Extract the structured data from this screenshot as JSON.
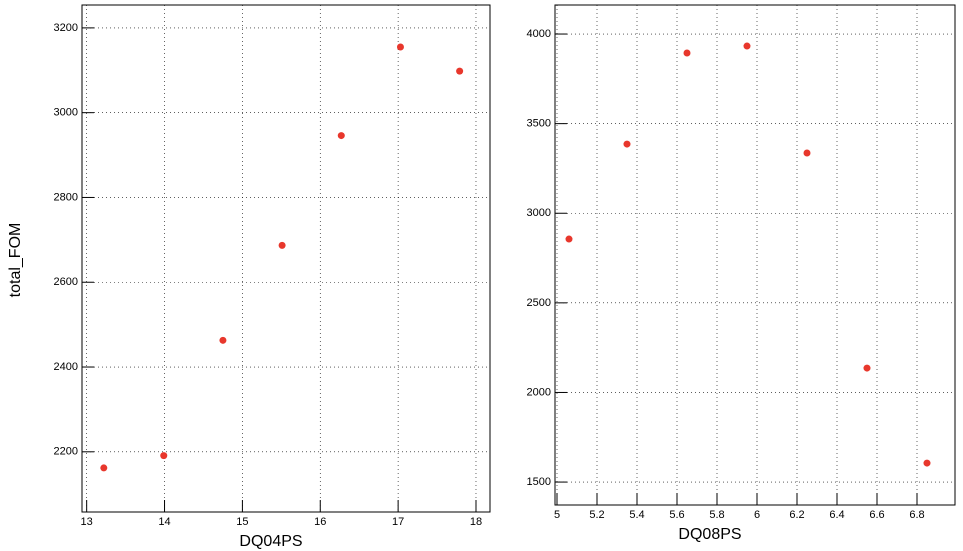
{
  "chart_data": [
    {
      "type": "scatter",
      "x_label": "DQ04PS",
      "y_label": "total_FOM",
      "color": "#e8372c",
      "grid": true,
      "x": [
        13.22,
        13.99,
        14.75,
        15.51,
        16.27,
        17.03,
        17.79
      ],
      "values": [
        2162,
        2191,
        2463,
        2687,
        2946,
        3155,
        3098
      ],
      "xlim": [
        12.94,
        18.18
      ],
      "xticks": [
        13,
        14,
        15,
        16,
        17,
        18
      ],
      "ylim": [
        2058,
        3254
      ],
      "yticks": [
        2200,
        2400,
        2600,
        2800,
        3000,
        3200
      ]
    },
    {
      "type": "scatter",
      "x_label": "DQ08PS",
      "color": "#e8372c",
      "grid": true,
      "x": [
        5.06,
        5.35,
        5.65,
        5.95,
        6.25,
        6.55,
        6.85
      ],
      "values": [
        2856,
        3386,
        3894,
        3933,
        3336,
        2136,
        1606
      ],
      "xlim": [
        4.99,
        6.99
      ],
      "xticks": [
        5,
        5.2,
        5.4,
        5.6,
        5.8,
        6,
        6.2,
        6.4,
        6.6,
        6.8
      ],
      "ylim": [
        1372,
        4162
      ],
      "yticks": [
        1500,
        2000,
        2500,
        3000,
        3500,
        4000
      ]
    }
  ]
}
